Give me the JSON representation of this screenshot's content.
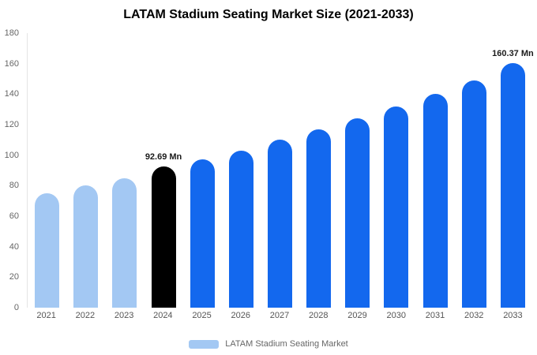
{
  "title": "LATAM Stadium Seating Market Size (2021-2033)",
  "legend": {
    "label": "LATAM Stadium Seating Market",
    "swatch_color": "#a3c8f3"
  },
  "colors": {
    "light_blue": "#a3c8f3",
    "blue": "#1368ee",
    "black": "#000000",
    "axis_line": "#e4e4e4",
    "tick_text": "#666666"
  },
  "chart_data": {
    "type": "bar",
    "title": "LATAM Stadium Seating Market Size (2021-2033)",
    "categories": [
      "2021",
      "2022",
      "2023",
      "2024",
      "2025",
      "2026",
      "2027",
      "2028",
      "2029",
      "2030",
      "2031",
      "2032",
      "2033"
    ],
    "values": [
      75,
      80,
      85,
      92.69,
      97,
      103,
      110,
      117,
      124,
      132,
      140,
      149,
      160.37
    ],
    "bar_colors": [
      "#a3c8f3",
      "#a3c8f3",
      "#a3c8f3",
      "#000000",
      "#1368ee",
      "#1368ee",
      "#1368ee",
      "#1368ee",
      "#1368ee",
      "#1368ee",
      "#1368ee",
      "#1368ee",
      "#1368ee"
    ],
    "annotations": [
      {
        "index": 3,
        "text": "92.69 Mn"
      },
      {
        "index": 12,
        "text": "160.37 Mn"
      }
    ],
    "xlabel": "",
    "ylabel": "",
    "ylim": [
      0,
      180
    ],
    "yticks": [
      0,
      20,
      40,
      60,
      80,
      100,
      120,
      140,
      160,
      180
    ],
    "grid": false,
    "legend_position": "bottom",
    "legend_entries": [
      "LATAM Stadium Seating Market"
    ]
  }
}
